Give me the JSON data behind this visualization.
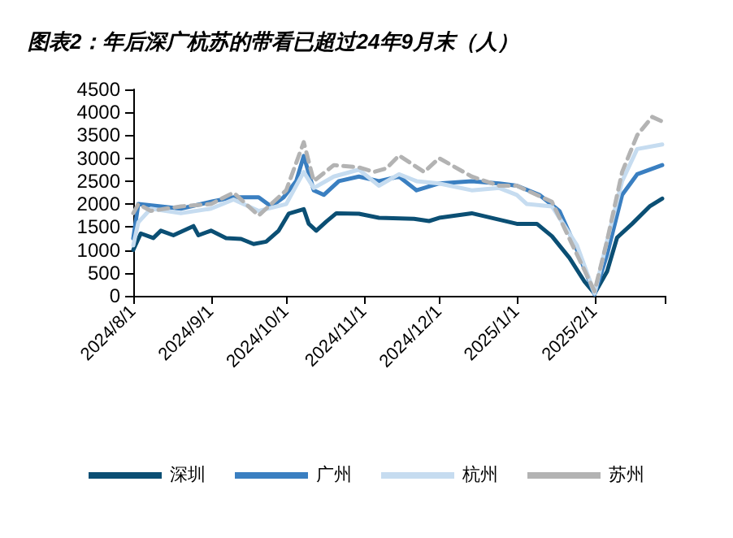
{
  "chart_data": {
    "type": "line",
    "title": "图表2：年后深广杭苏的带看已超过24年9月末（人）",
    "xlim": [
      "2024-08-01",
      "2025-03-01"
    ],
    "xticks": [
      {
        "value": "2024-08-01",
        "label": "2024/8/1"
      },
      {
        "value": "2024-09-01",
        "label": "2024/9/1"
      },
      {
        "value": "2024-10-01",
        "label": "2024/10/1"
      },
      {
        "value": "2024-11-01",
        "label": "2024/11/1"
      },
      {
        "value": "2024-12-01",
        "label": "2024/12/1"
      },
      {
        "value": "2025-01-01",
        "label": "2025/1/1"
      },
      {
        "value": "2025-02-01",
        "label": "2025/2/1"
      },
      {
        "value": "2025-03-01",
        "label": null
      }
    ],
    "ylim": [
      0,
      4500
    ],
    "yticks": [
      0,
      500,
      1000,
      1500,
      2000,
      2500,
      3000,
      3500,
      4000,
      4500
    ],
    "grid": false,
    "legend": "bottom",
    "marker": "none",
    "series": [
      {
        "name": "深圳",
        "color": "#0b4f74",
        "line_style": "solid",
        "x": [
          "2024-08-01",
          "2024-08-04",
          "2024-08-09",
          "2024-08-12",
          "2024-08-17",
          "2024-08-25",
          "2024-08-27",
          "2024-09-01",
          "2024-09-07",
          "2024-09-13",
          "2024-09-18",
          "2024-09-23",
          "2024-09-28",
          "2024-10-02",
          "2024-10-08",
          "2024-10-10",
          "2024-10-13",
          "2024-10-17",
          "2024-10-21",
          "2024-10-30",
          "2024-11-07",
          "2024-11-21",
          "2024-11-27",
          "2024-12-01",
          "2024-12-14",
          "2025-01-01",
          "2025-01-09",
          "2025-01-15",
          "2025-01-22",
          "2025-01-28",
          "2025-02-01",
          "2025-02-06",
          "2025-02-10",
          "2025-02-16",
          "2025-02-23",
          "2025-02-28"
        ],
        "values": [
          1000,
          1360,
          1260,
          1420,
          1320,
          1520,
          1320,
          1420,
          1260,
          1240,
          1130,
          1180,
          1420,
          1790,
          1890,
          1570,
          1420,
          1620,
          1800,
          1790,
          1700,
          1680,
          1630,
          1700,
          1800,
          1570,
          1570,
          1300,
          825,
          310,
          50,
          530,
          1270,
          1570,
          1950,
          2120
        ]
      },
      {
        "name": "广州",
        "color": "#3a7fc1",
        "line_style": "solid",
        "x": [
          "2024-08-01",
          "2024-08-03",
          "2024-08-12",
          "2024-08-20",
          "2024-09-01",
          "2024-09-10",
          "2024-09-20",
          "2024-09-25",
          "2024-09-30",
          "2024-10-05",
          "2024-10-08",
          "2024-10-12",
          "2024-10-16",
          "2024-10-22",
          "2024-10-30",
          "2024-11-07",
          "2024-11-15",
          "2024-11-22",
          "2024-12-01",
          "2024-12-14",
          "2024-12-25",
          "2025-01-01",
          "2025-01-10",
          "2025-01-18",
          "2025-01-25",
          "2025-02-01",
          "2025-02-06",
          "2025-02-12",
          "2025-02-18",
          "2025-02-28"
        ],
        "values": [
          1250,
          2000,
          1950,
          1900,
          2050,
          2150,
          2150,
          1950,
          2150,
          2500,
          3050,
          2300,
          2200,
          2500,
          2600,
          2500,
          2600,
          2300,
          2450,
          2500,
          2450,
          2400,
          2200,
          1850,
          1000,
          30,
          900,
          2200,
          2650,
          2850
        ]
      },
      {
        "name": "杭州",
        "color": "#c6dcf0",
        "line_style": "solid",
        "x": [
          "2024-08-01",
          "2024-08-03",
          "2024-08-08",
          "2024-08-20",
          "2024-09-01",
          "2024-09-10",
          "2024-09-20",
          "2024-10-01",
          "2024-10-08",
          "2024-10-12",
          "2024-10-20",
          "2024-10-30",
          "2024-11-07",
          "2024-11-15",
          "2024-11-22",
          "2024-12-01",
          "2024-12-14",
          "2024-12-25",
          "2025-01-01",
          "2025-01-05",
          "2025-01-15",
          "2025-01-25",
          "2025-02-01",
          "2025-02-06",
          "2025-02-12",
          "2025-02-18",
          "2025-02-28"
        ],
        "values": [
          1100,
          1600,
          1900,
          1800,
          1900,
          2100,
          1850,
          2000,
          2700,
          2350,
          2600,
          2750,
          2400,
          2650,
          2500,
          2450,
          2300,
          2350,
          2200,
          2000,
          1950,
          1100,
          50,
          1200,
          2500,
          3200,
          3300
        ]
      },
      {
        "name": "苏州",
        "color": "#b3b3b3",
        "line_style": "dashed",
        "x": [
          "2024-08-01",
          "2024-08-03",
          "2024-08-08",
          "2024-08-20",
          "2024-09-01",
          "2024-09-10",
          "2024-09-20",
          "2024-10-01",
          "2024-10-08",
          "2024-10-12",
          "2024-10-20",
          "2024-10-30",
          "2024-11-05",
          "2024-11-10",
          "2024-11-15",
          "2024-11-25",
          "2024-12-01",
          "2024-12-14",
          "2024-12-25",
          "2025-01-01",
          "2025-01-15",
          "2025-01-25",
          "2025-02-01",
          "2025-02-06",
          "2025-02-12",
          "2025-02-18",
          "2025-02-24",
          "2025-02-28"
        ],
        "values": [
          1800,
          2000,
          1850,
          1950,
          2000,
          2250,
          1750,
          2300,
          3350,
          2500,
          2850,
          2800,
          2700,
          2780,
          3060,
          2700,
          3000,
          2600,
          2400,
          2400,
          2050,
          900,
          100,
          1200,
          2700,
          3500,
          3900,
          3800
        ]
      }
    ]
  }
}
